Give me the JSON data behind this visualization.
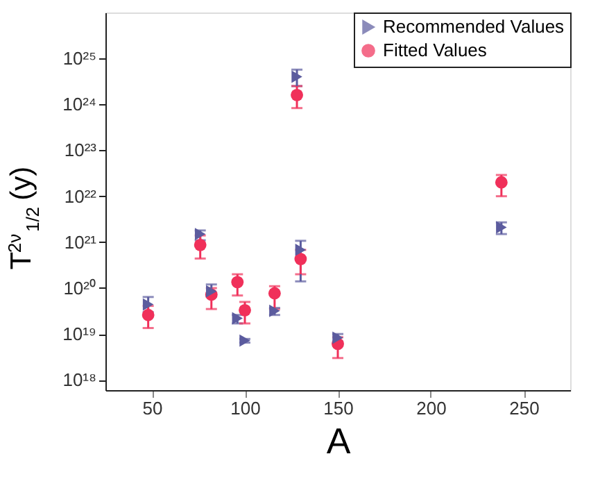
{
  "chart_data": {
    "type": "scatter",
    "xlabel": "A",
    "ylabel": "T$^{2ν}$$_{1/2}$ (y)",
    "log": "y",
    "grid": false,
    "legend": "top right",
    "x": [
      48,
      76,
      82,
      96,
      100,
      116,
      128,
      130,
      150,
      238
    ],
    "xlim": [
      25,
      275
    ],
    "xticks": [
      50,
      100,
      150,
      200,
      250
    ],
    "ylim": [
      6e+17,
      1e+26
    ],
    "yticks": [
      {
        "value": 1e+18,
        "label": "10¹⁸"
      },
      {
        "value": 1e+19,
        "label": "10¹⁹"
      },
      {
        "value": 1e+20,
        "label": "10²⁰"
      },
      {
        "value": 1e+21,
        "label": "10²¹"
      },
      {
        "value": 1e+22,
        "label": "10²²"
      },
      {
        "value": 1e+23,
        "label": "10²³"
      },
      {
        "value": 1e+24,
        "label": "10²⁴"
      },
      {
        "value": 1e+25,
        "label": "10²⁵"
      }
    ],
    "series": [
      {
        "name": "Recommended Values",
        "color": "#5b5b9e",
        "marker": "triangle",
        "values": [
          4.4e+19,
          1.5e+21,
          8.5e+19,
          2.2e+19,
          7.2e+18,
          3.2e+19,
          4e+24,
          6.8e+20,
          8.3e+18,
          2.1e+21
        ],
        "errors": [
          [
            3e+19,
            6.4e+19
          ],
          [
            1.1e+21,
            1.8e+21
          ],
          [
            6.5e+19,
            1.2e+20
          ],
          [
            1.7e+19,
            2.6e+19
          ],
          [
            6.5e+18,
            7.8e+18
          ],
          [
            2.6e+19,
            3.7e+19
          ],
          [
            2.5e+24,
            5.7e+24
          ],
          [
            1.4e+20,
            1.07e+21
          ],
          [
            6.9e+18,
            1e+19
          ],
          [
            1.5e+21,
            2.7e+21
          ]
        ]
      },
      {
        "name": "Fitted Values",
        "color": "#f0305a",
        "marker": "circle",
        "values": [
          2.6e+19,
          8.7e+20,
          7.2e+19,
          1.35e+20,
          3.3e+19,
          7.7e+19,
          1.6e+24,
          4.3e+20,
          6.1e+18,
          2e+22
        ],
        "errors": [
          [
            1.35e+19,
            4.1e+19
          ],
          [
            4.4e+20,
            1.4e+21
          ],
          [
            3.5e+19,
            1e+20
          ],
          [
            6.9e+19,
            2e+20
          ],
          [
            1.7e+19,
            5e+19
          ],
          [
            3.5e+19,
            1.1e+20
          ],
          [
            8.3e+23,
            2.5e+24
          ],
          [
            2e+20,
            6.8e+20
          ],
          [
            3e+18,
            8.5e+18
          ],
          [
            1e+22,
            2.9e+22
          ]
        ]
      }
    ]
  }
}
